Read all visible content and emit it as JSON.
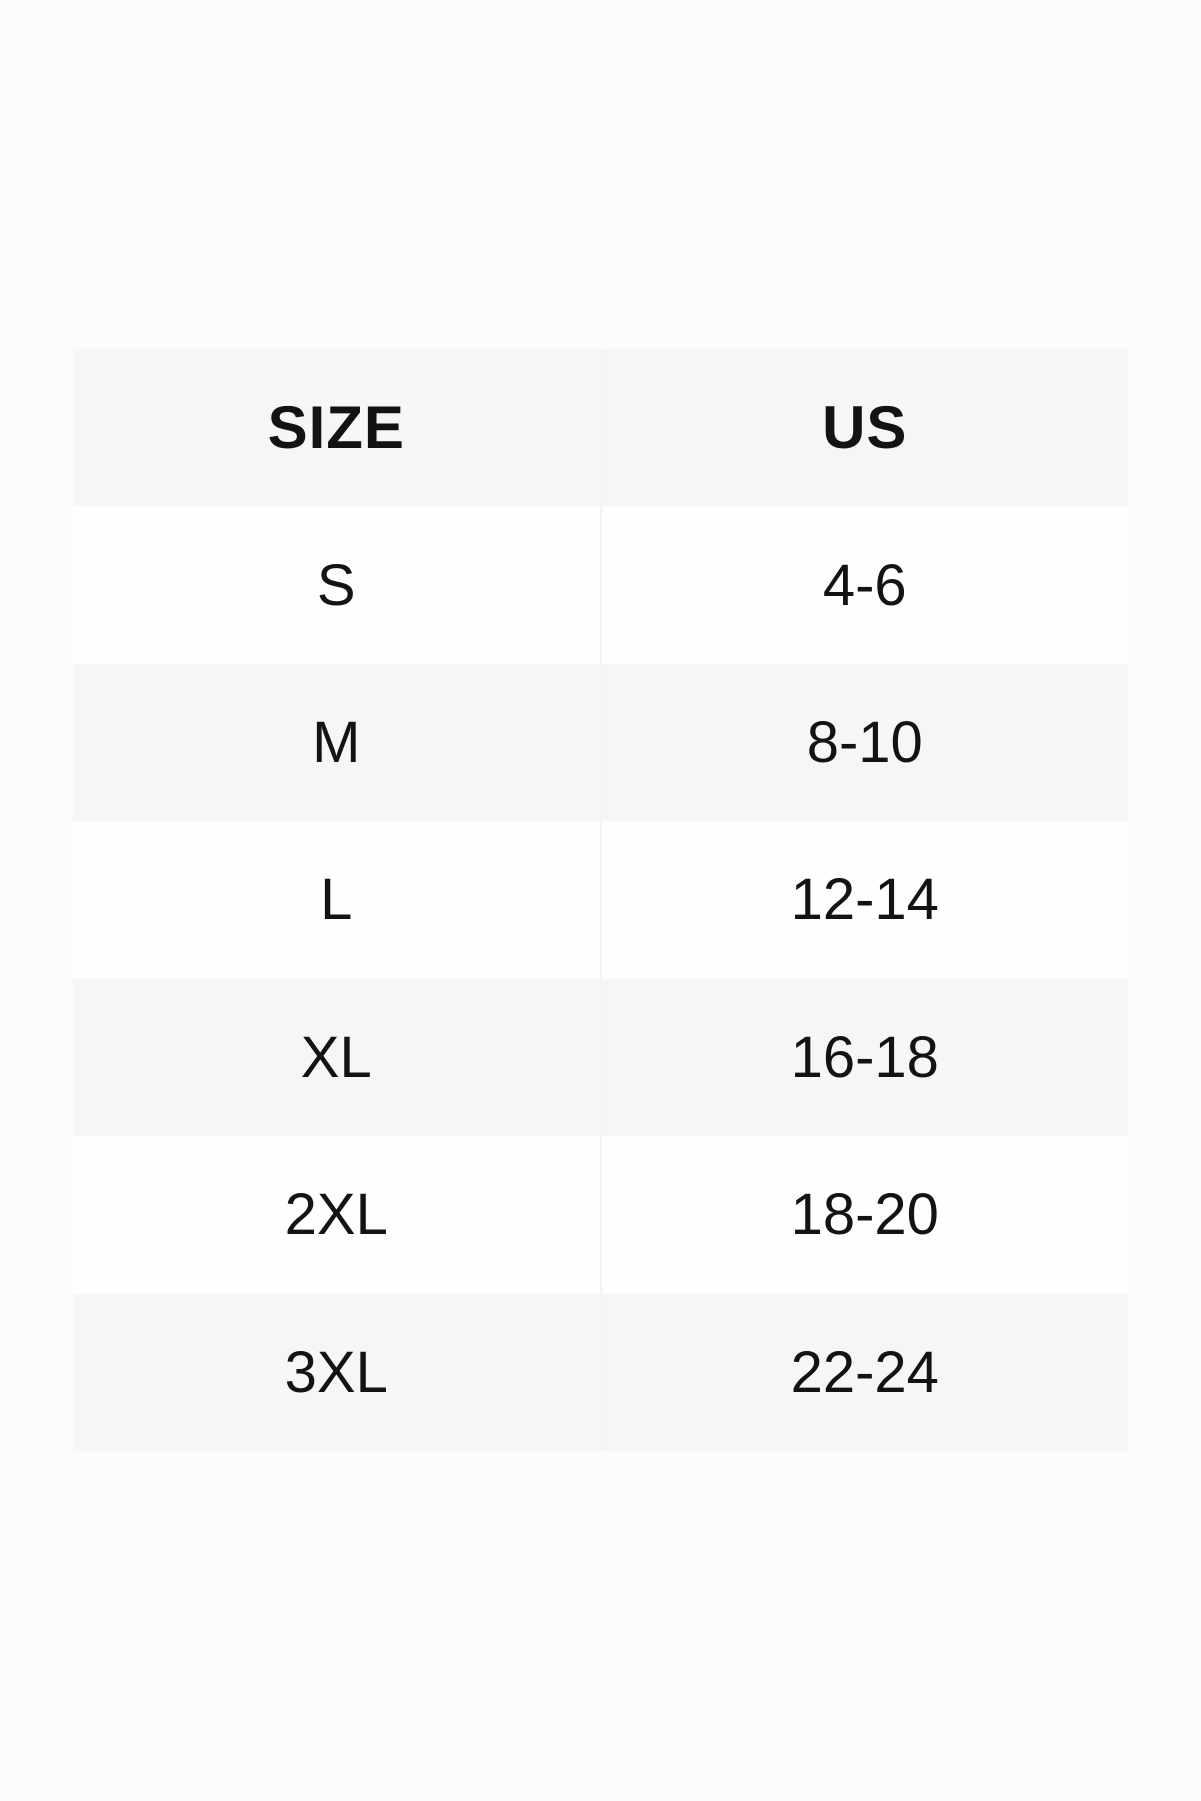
{
  "page": {
    "background": "#fcfcfb"
  },
  "colors": {
    "row_shaded": "#f6f6f5",
    "row_plain": "#fefefe",
    "divider": "#f4f4f3",
    "text": "#131313"
  },
  "size_chart": {
    "headers": [
      {
        "id": "size",
        "label": "SIZE"
      },
      {
        "id": "us",
        "label": "US"
      }
    ],
    "rows": [
      {
        "size": "S",
        "us": "4-6"
      },
      {
        "size": "M",
        "us": "8-10"
      },
      {
        "size": "L",
        "us": "12-14"
      },
      {
        "size": "XL",
        "us": "16-18"
      },
      {
        "size": "2XL",
        "us": "18-20"
      },
      {
        "size": "3XL",
        "us": "22-24"
      }
    ]
  }
}
